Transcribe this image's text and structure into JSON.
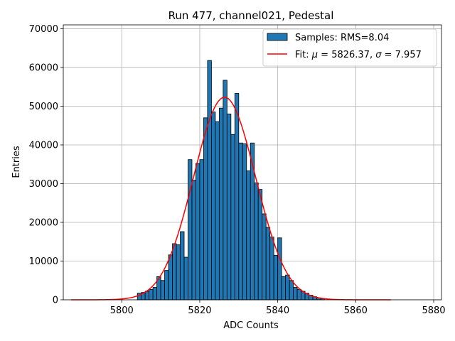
{
  "chart_data": {
    "type": "bar",
    "title": "Run 477, channel021, Pedestal",
    "xlabel": "ADC Counts",
    "ylabel": "Entries",
    "xlim": [
      5785,
      5882
    ],
    "ylim": [
      0,
      71000
    ],
    "xticks": [
      5800,
      5820,
      5840,
      5860,
      5880
    ],
    "yticks": [
      0,
      10000,
      20000,
      30000,
      40000,
      50000,
      60000,
      70000
    ],
    "grid": true,
    "legend_position": "top-right",
    "colors": {
      "bars": "#1f77b4",
      "bar_edge": "#000000",
      "fit": "#ff0000",
      "grid": "#b0b0b0"
    },
    "histogram": {
      "name": "Samples: RMS=8.04",
      "bin_left_edges": [
        5804,
        5805,
        5806,
        5807,
        5808,
        5809,
        5810,
        5811,
        5812,
        5813,
        5814,
        5815,
        5816,
        5817,
        5818,
        5819,
        5820,
        5821,
        5822,
        5823,
        5824,
        5825,
        5826,
        5827,
        5828,
        5829,
        5830,
        5831,
        5832,
        5833,
        5834,
        5835,
        5836,
        5837,
        5838,
        5839,
        5840,
        5841,
        5842,
        5843,
        5844,
        5845,
        5846,
        5847,
        5848,
        5849,
        5850,
        5851
      ],
      "bin_width": 1,
      "values": [
        1700,
        1900,
        2200,
        2700,
        3200,
        6000,
        5000,
        7600,
        11600,
        14500,
        14200,
        17600,
        11000,
        36200,
        30900,
        35200,
        36200,
        47000,
        61800,
        48500,
        46000,
        49500,
        56700,
        48000,
        42700,
        53300,
        40500,
        40300,
        33300,
        40500,
        30200,
        28500,
        22200,
        18700,
        16200,
        11500,
        16000,
        6000,
        6400,
        5000,
        3200,
        2700,
        2200,
        1700,
        1200,
        800,
        500,
        300
      ]
    },
    "fit": {
      "name": "Fit: $\\mu$ = 5826.37, $\\sigma$ = 7.957",
      "label_prefix": "Fit: ",
      "mu_symbol": "μ",
      "mu_text": " = 5826.37, ",
      "sigma_symbol": "σ",
      "sigma_text": " = 7.957",
      "mu": 5826.37,
      "sigma": 7.957,
      "amplitude": 52300,
      "x_range": [
        5787,
        5869
      ]
    }
  }
}
